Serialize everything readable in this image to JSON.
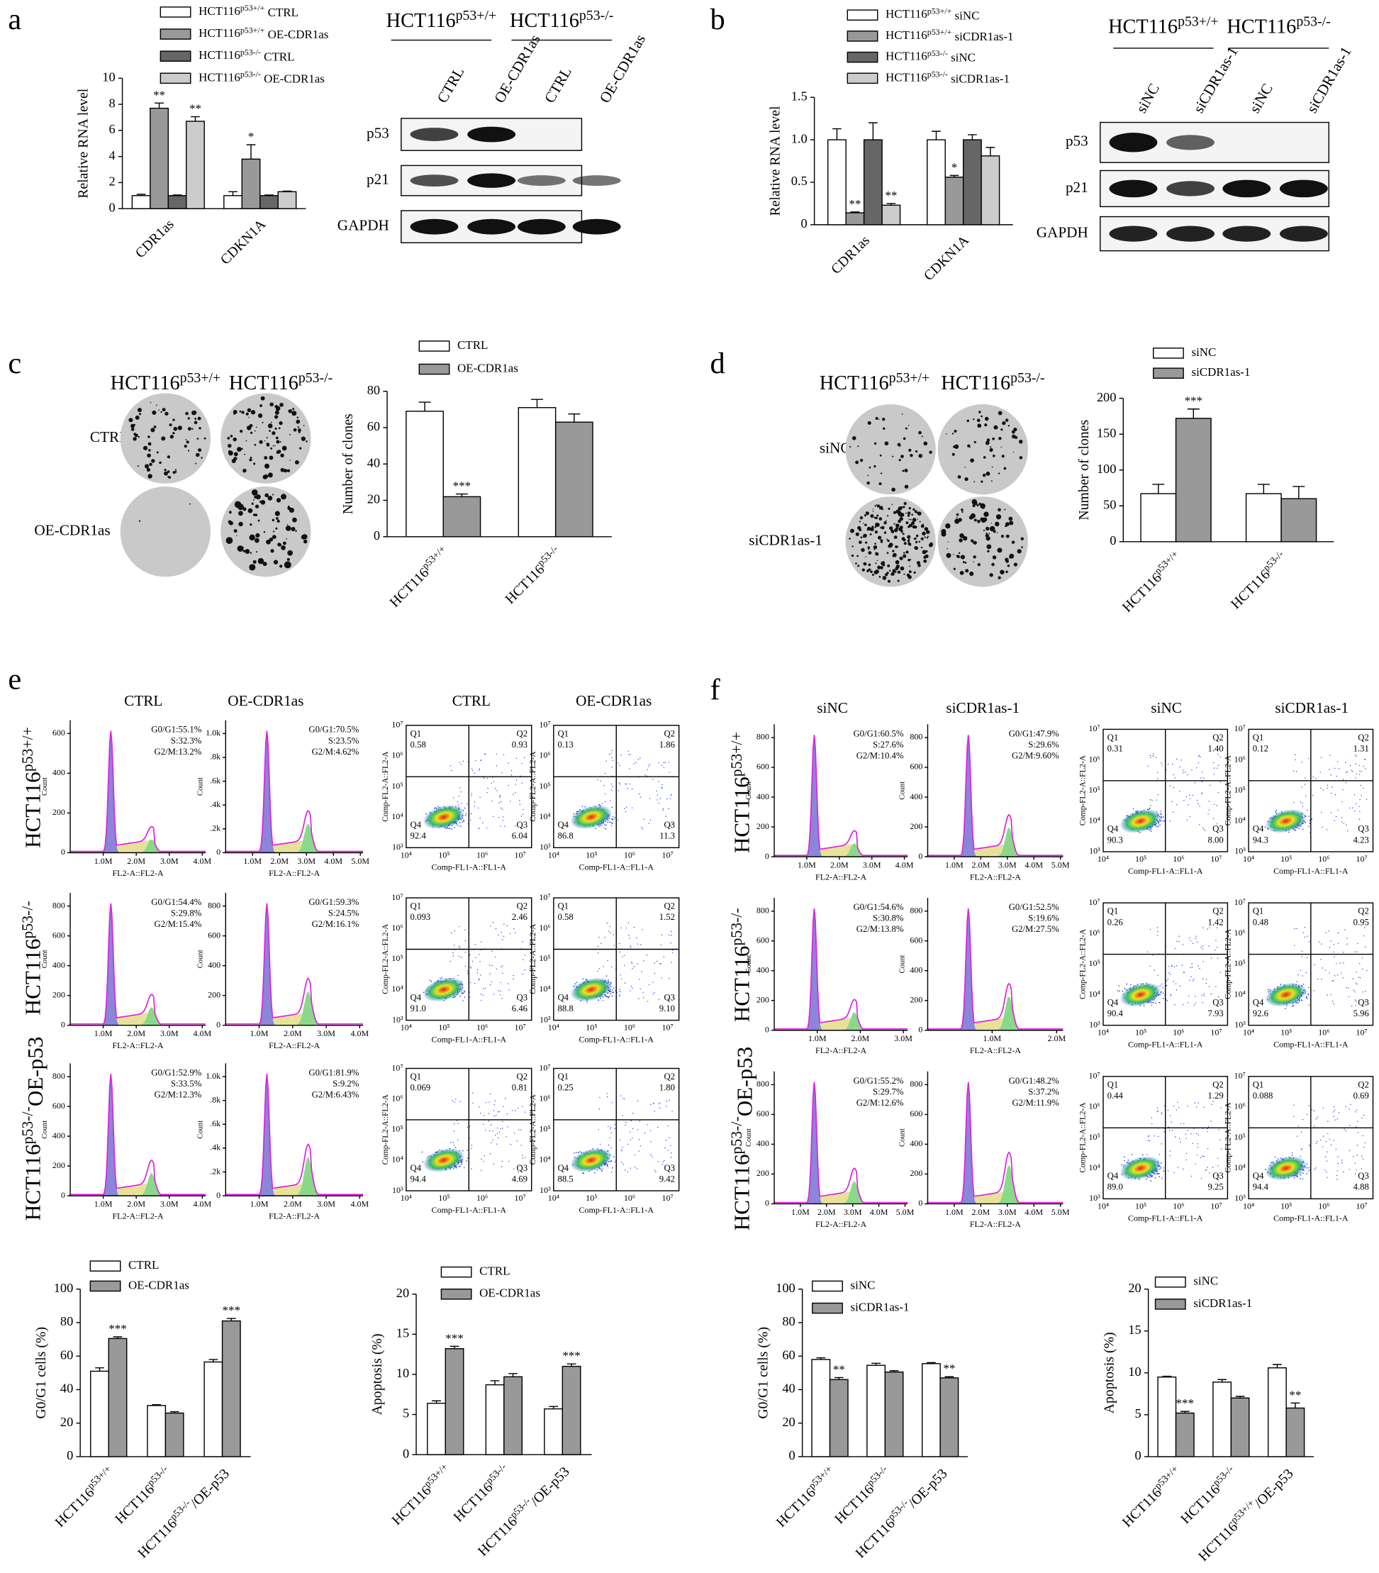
{
  "panel_labels": [
    "a",
    "b",
    "c",
    "d",
    "e",
    "f"
  ],
  "blots": {
    "a": {
      "groups": [
        "HCT116p53+/+",
        "HCT116p53-/-"
      ],
      "lanes": [
        "CTRL",
        "OE-CDR1as",
        "CTRL",
        "OE-CDR1as"
      ],
      "rows": [
        "p53",
        "p21",
        "GAPDH"
      ]
    },
    "b": {
      "groups": [
        "HCT116p53+/+",
        "HCT116p53-/-"
      ],
      "lanes": [
        "siNC",
        "siCDR1as-1",
        "siNC",
        "siCDR1as-1"
      ],
      "rows": [
        "p53",
        "p21",
        "GAPDH"
      ]
    }
  },
  "colonies": {
    "c": {
      "columns": [
        "HCT116p53+/+",
        "HCT116p53-/-"
      ],
      "rows": [
        "CTRL",
        "OE-CDR1as"
      ]
    },
    "d": {
      "columns": [
        "HCT116p53+/+",
        "HCT116p53-/-"
      ],
      "rows": [
        "siNC",
        "siCDR1as-1"
      ]
    }
  },
  "flow": {
    "count_label": "Count",
    "hist_x_label": "FL2-A::FL2-A",
    "scatter_y_label": "Comp-FL2-A::FL2-A",
    "scatter_x_label": "Comp-FL1-A::FL1-A",
    "quadrants": [
      "Q1",
      "Q2",
      "Q3",
      "Q4"
    ],
    "scatter_yticks": [
      "10³",
      "10⁴",
      "10⁵",
      "10⁶",
      "10⁷"
    ],
    "scatter_xticks": [
      "10⁴",
      "10⁵",
      "10⁶",
      "10⁷"
    ],
    "e": {
      "cycle_columns": [
        "CTRL",
        "OE-CDR1as"
      ],
      "apoptosis_columns": [
        "CTRL",
        "OE-CDR1as"
      ],
      "rows": [
        "HCT116p53+/+",
        "HCT116p53-/-",
        "HCT116p53-/-OE-p53"
      ],
      "histograms": [
        {
          "stats": [
            "G0/G1:55.1%",
            "S:32.3%",
            "G2/M:13.2%"
          ],
          "yticks": [
            "0",
            "200",
            "400",
            "600"
          ],
          "xticks": [
            "1.0M",
            "2.0M",
            "3.0M",
            "4.0M"
          ]
        },
        {
          "stats": [
            "G0/G1:70.5%",
            "S:23.5%",
            "G2/M:4.62%"
          ],
          "yticks": [
            "0",
            ".2k",
            ".4k",
            ".6k",
            ".8k",
            "1.0k"
          ],
          "xticks": [
            "1.0M",
            "2.0M",
            "3.0M",
            "4.0M",
            "5.0M"
          ]
        },
        {
          "stats": [
            "G0/G1:54.4%",
            "S:29.8%",
            "G2/M:15.4%"
          ],
          "yticks": [
            "0",
            "200",
            "400",
            "600",
            "800"
          ],
          "xticks": [
            "1.0M",
            "2.0M",
            "3.0M",
            "4.0M"
          ]
        },
        {
          "stats": [
            "G0/G1:59.3%",
            "S:24.5%",
            "G2/M:16.1%"
          ],
          "yticks": [
            "0",
            "200",
            "400",
            "600",
            "800"
          ],
          "xticks": [
            "1.0M",
            "2.0M",
            "3.0M",
            "4.0M"
          ]
        },
        {
          "stats": [
            "G0/G1:52.9%",
            "S:33.5%",
            "G2/M:12.3%"
          ],
          "yticks": [
            "0",
            "200",
            "400",
            "600",
            "800"
          ],
          "xticks": [
            "1.0M",
            "2.0M",
            "3.0M",
            "4.0M"
          ]
        },
        {
          "stats": [
            "G0/G1:81.9%",
            "S:9.2%",
            "G2/M:6.43%"
          ],
          "yticks": [
            "0",
            ".2k",
            ".4k",
            ".6k",
            ".8k",
            "1.0k"
          ],
          "xticks": [
            "1.0M",
            "2.0M",
            "3.0M",
            "4.0M"
          ]
        }
      ],
      "scatters": [
        {
          "values": [
            "0.58",
            "0.93",
            "6.04",
            "92.4"
          ]
        },
        {
          "values": [
            "0.13",
            "1.86",
            "11.3",
            "86.8"
          ]
        },
        {
          "values": [
            "0.093",
            "2.46",
            "6.46",
            "91.0"
          ]
        },
        {
          "values": [
            "0.58",
            "1.52",
            "9.10",
            "88.8"
          ]
        },
        {
          "values": [
            "0.069",
            "0.81",
            "4.69",
            "94.4"
          ]
        },
        {
          "values": [
            "0.25",
            "1.80",
            "9.42",
            "88.5"
          ]
        }
      ]
    },
    "f": {
      "cycle_columns": [
        "siNC",
        "siCDR1as-1"
      ],
      "apoptosis_columns": [
        "siNC",
        "siCDR1as-1"
      ],
      "rows": [
        "HCT116p53+/+",
        "HCT116p53-/-",
        "HCT116p53-/-OE-p53"
      ],
      "histograms": [
        {
          "stats": [
            "G0/G1:60.5%",
            "S:27.6%",
            "G2/M:10.4%"
          ],
          "yticks": [
            "0",
            "200",
            "400",
            "600",
            "800"
          ],
          "xticks": [
            "1.0M",
            "2.0M",
            "3.0M",
            "4.0M"
          ]
        },
        {
          "stats": [
            "G0/G1:47.9%",
            "S:29.6%",
            "G2/M:9.60%"
          ],
          "yticks": [
            "0",
            "200",
            "400",
            "600",
            "800"
          ],
          "xticks": [
            "1.0M",
            "2.0M",
            "3.0M",
            "4.0M",
            "5.0M"
          ]
        },
        {
          "stats": [
            "G0/G1:54.6%",
            "S:30.8%",
            "G2/M:13.8%"
          ],
          "yticks": [
            "0",
            "200",
            "400",
            "600",
            "800"
          ],
          "xticks": [
            "1.0M",
            "2.0M",
            "3.0M"
          ]
        },
        {
          "stats": [
            "G0/G1:52.5%",
            "S:19.6%",
            "G2/M:27.5%"
          ],
          "yticks": [
            "0",
            "200",
            "400",
            "600",
            "800"
          ],
          "xticks": [
            "1.0M",
            "2.0M"
          ]
        },
        {
          "stats": [
            "G0/G1:55.2%",
            "S:29.7%",
            "G2/M:12.6%"
          ],
          "yticks": [
            "0",
            "200",
            "400",
            "600",
            "800"
          ],
          "xticks": [
            "1.0M",
            "2.0M",
            "3.0M",
            "4.0M",
            "5.0M"
          ]
        },
        {
          "stats": [
            "G0/G1:48.2%",
            "S:37.2%",
            "G2/M:11.9%"
          ],
          "yticks": [
            "0",
            "200",
            "400",
            "600",
            "800"
          ],
          "xticks": [
            "1.0M",
            "2.0M",
            "3.0M",
            "4.0M",
            "5.0M"
          ]
        }
      ],
      "scatters": [
        {
          "values": [
            "0.31",
            "1.40",
            "8.00",
            "90.3"
          ]
        },
        {
          "values": [
            "0.12",
            "1.31",
            "4.23",
            "94.3"
          ]
        },
        {
          "values": [
            "0.26",
            "1.42",
            "7.93",
            "90.4"
          ]
        },
        {
          "values": [
            "0.48",
            "0.95",
            "5.96",
            "92.6"
          ]
        },
        {
          "values": [
            "0.44",
            "1.29",
            "9.25",
            "89.0"
          ]
        },
        {
          "values": [
            "0.088",
            "0.69",
            "4.88",
            "94.4"
          ]
        }
      ]
    }
  },
  "chart_data": [
    {
      "type": "bar",
      "y_label": "Relative RNA level",
      "categories": [
        "CDR1as",
        "CDKN1A"
      ],
      "ylim": [
        0,
        10
      ],
      "yticks": [
        0,
        2,
        4,
        6,
        8,
        10
      ],
      "series": [
        {
          "name": "HCT116p53+/+ CTRL",
          "color": "#ffffff",
          "values": [
            1.0,
            1.0
          ],
          "errors": [
            0.1,
            0.3
          ],
          "sig_labels": [
            null,
            null
          ]
        },
        {
          "name": "HCT116p53+/+ OE-CDR1as",
          "color": "#999999",
          "values": [
            7.7,
            3.8
          ],
          "errors": [
            0.4,
            1.1
          ],
          "sig_labels": [
            "**",
            "*"
          ]
        },
        {
          "name": "HCT116p53-/- CTRL",
          "color": "#666666",
          "values": [
            1.0,
            1.0
          ],
          "errors": [
            0.05,
            0.05
          ],
          "sig_labels": [
            null,
            null
          ]
        },
        {
          "name": "HCT116p53-/- OE-CDR1as",
          "color": "#cccccc",
          "values": [
            6.7,
            1.3
          ],
          "errors": [
            0.35,
            0.05
          ],
          "sig_labels": [
            "**",
            null
          ]
        }
      ]
    },
    {
      "type": "bar",
      "y_label": "Relative RNA level",
      "categories": [
        "CDR1as",
        "CDKN1A"
      ],
      "ylim": [
        0,
        1.5
      ],
      "yticks": [
        0,
        0.5,
        {
          "value": 1,
          "label": "1.0"
        },
        1.5
      ],
      "series": [
        {
          "name": "HCT116p53+/+ siNC",
          "color": "#ffffff",
          "values": [
            1.0,
            1.0
          ],
          "errors": [
            0.13,
            0.1
          ],
          "sig_labels": [
            null,
            null
          ]
        },
        {
          "name": "HCT116p53+/+ siCDR1as-1",
          "color": "#999999",
          "values": [
            0.14,
            0.56
          ],
          "errors": [
            0.01,
            0.02
          ],
          "sig_labels": [
            "**",
            "*"
          ]
        },
        {
          "name": "HCT116p53-/- siNC",
          "color": "#666666",
          "values": [
            1.0,
            1.0
          ],
          "errors": [
            0.2,
            0.06
          ],
          "sig_labels": [
            null,
            null
          ]
        },
        {
          "name": "HCT116p53-/- siCDR1as-1",
          "color": "#cccccc",
          "values": [
            0.23,
            0.81
          ],
          "errors": [
            0.02,
            0.1
          ],
          "sig_labels": [
            "**",
            null
          ]
        }
      ]
    },
    {
      "type": "bar",
      "y_label": "Number of clones",
      "categories": [
        "HCT116p53+/+",
        "HCT116p53-/-"
      ],
      "ylim": [
        0,
        80
      ],
      "yticks": [
        0,
        20,
        40,
        60,
        80
      ],
      "series": [
        {
          "name": "CTRL",
          "color": "#ffffff",
          "values": [
            69,
            71
          ],
          "errors": [
            5,
            4.5
          ],
          "sig_labels": [
            null,
            null
          ]
        },
        {
          "name": "OE-CDR1as",
          "color": "#999999",
          "values": [
            22,
            63
          ],
          "errors": [
            1.5,
            4.5
          ],
          "sig_labels": [
            "***",
            null
          ]
        }
      ]
    },
    {
      "type": "bar",
      "y_label": "Number of clones",
      "categories": [
        "HCT116p53+/+",
        "HCT116p53-/-"
      ],
      "ylim": [
        0,
        200
      ],
      "yticks": [
        0,
        50,
        100,
        150,
        200
      ],
      "series": [
        {
          "name": "siNC",
          "color": "#ffffff",
          "values": [
            67,
            67
          ],
          "errors": [
            13,
            13
          ],
          "sig_labels": [
            null,
            null
          ]
        },
        {
          "name": "siCDR1as-1",
          "color": "#999999",
          "values": [
            172,
            60
          ],
          "errors": [
            13,
            17
          ],
          "sig_labels": [
            "***",
            null
          ]
        }
      ]
    },
    {
      "type": "bar",
      "y_label": "G0/G1 cells (%)",
      "categories": [
        "HCT116p53+/+",
        "HCT116p53-/-",
        "HCT116p53-/-/OE-p53"
      ],
      "ylim": [
        0,
        100
      ],
      "yticks": [
        0,
        20,
        40,
        60,
        80,
        100
      ],
      "series": [
        {
          "name": "CTRL",
          "color": "#ffffff",
          "values": [
            51,
            30.5,
            56.5
          ],
          "errors": [
            2,
            0.5,
            1.5
          ],
          "sig_labels": [
            null,
            null,
            null
          ]
        },
        {
          "name": "OE-CDR1as",
          "color": "#999999",
          "values": [
            70.5,
            26,
            81
          ],
          "errors": [
            1,
            0.8,
            1.5
          ],
          "sig_labels": [
            "***",
            null,
            "***"
          ]
        }
      ]
    },
    {
      "type": "bar",
      "y_label": "Apoptosis (%)",
      "categories": [
        "HCT116p53+/+",
        "HCT116p53-/-",
        "HCT116p53-/-/OE-p53"
      ],
      "ylim": [
        0,
        20
      ],
      "yticks": [
        0,
        5,
        10,
        15,
        20
      ],
      "series": [
        {
          "name": "CTRL",
          "color": "#ffffff",
          "values": [
            6.4,
            8.7,
            5.7
          ],
          "errors": [
            0.3,
            0.5,
            0.3
          ],
          "sig_labels": [
            null,
            null,
            null
          ]
        },
        {
          "name": "OE-CDR1as",
          "color": "#999999",
          "values": [
            13.2,
            9.7,
            11
          ],
          "errors": [
            0.3,
            0.4,
            0.3
          ],
          "sig_labels": [
            "***",
            null,
            "***"
          ]
        }
      ]
    },
    {
      "type": "bar",
      "y_label": "G0/G1 cells (%)",
      "categories": [
        "HCT116p53+/+",
        "HCT116p53-/-",
        "HCT116p53-/-/OE-p53"
      ],
      "ylim": [
        0,
        100
      ],
      "yticks": [
        0,
        20,
        40,
        60,
        80,
        100
      ],
      "series": [
        {
          "name": "siNC",
          "color": "#ffffff",
          "values": [
            58,
            54.5,
            55.5
          ],
          "errors": [
            1,
            1.2,
            0.6
          ],
          "sig_labels": [
            null,
            null,
            null
          ]
        },
        {
          "name": "siCDR1as-1",
          "color": "#999999",
          "values": [
            46,
            50.5,
            47
          ],
          "errors": [
            1.2,
            0.8,
            0.7
          ],
          "sig_labels": [
            "**",
            null,
            "**"
          ]
        }
      ]
    },
    {
      "type": "bar",
      "y_label": "Apoptosis (%)",
      "categories": [
        "HCT116p53+/+",
        "HCT116p53-/-",
        "HCT116p53+/+/OE-p53"
      ],
      "ylim": [
        0,
        20
      ],
      "yticks": [
        0,
        5,
        10,
        15,
        20
      ],
      "series": [
        {
          "name": "siNC",
          "color": "#ffffff",
          "values": [
            9.5,
            8.9,
            10.6
          ],
          "errors": [
            0.1,
            0.3,
            0.4
          ],
          "sig_labels": [
            null,
            null,
            null
          ]
        },
        {
          "name": "siCDR1as-1",
          "color": "#999999",
          "values": [
            5.2,
            7,
            5.8
          ],
          "errors": [
            0.2,
            0.2,
            0.6
          ],
          "sig_labels": [
            "***",
            null,
            "**"
          ]
        }
      ]
    }
  ]
}
